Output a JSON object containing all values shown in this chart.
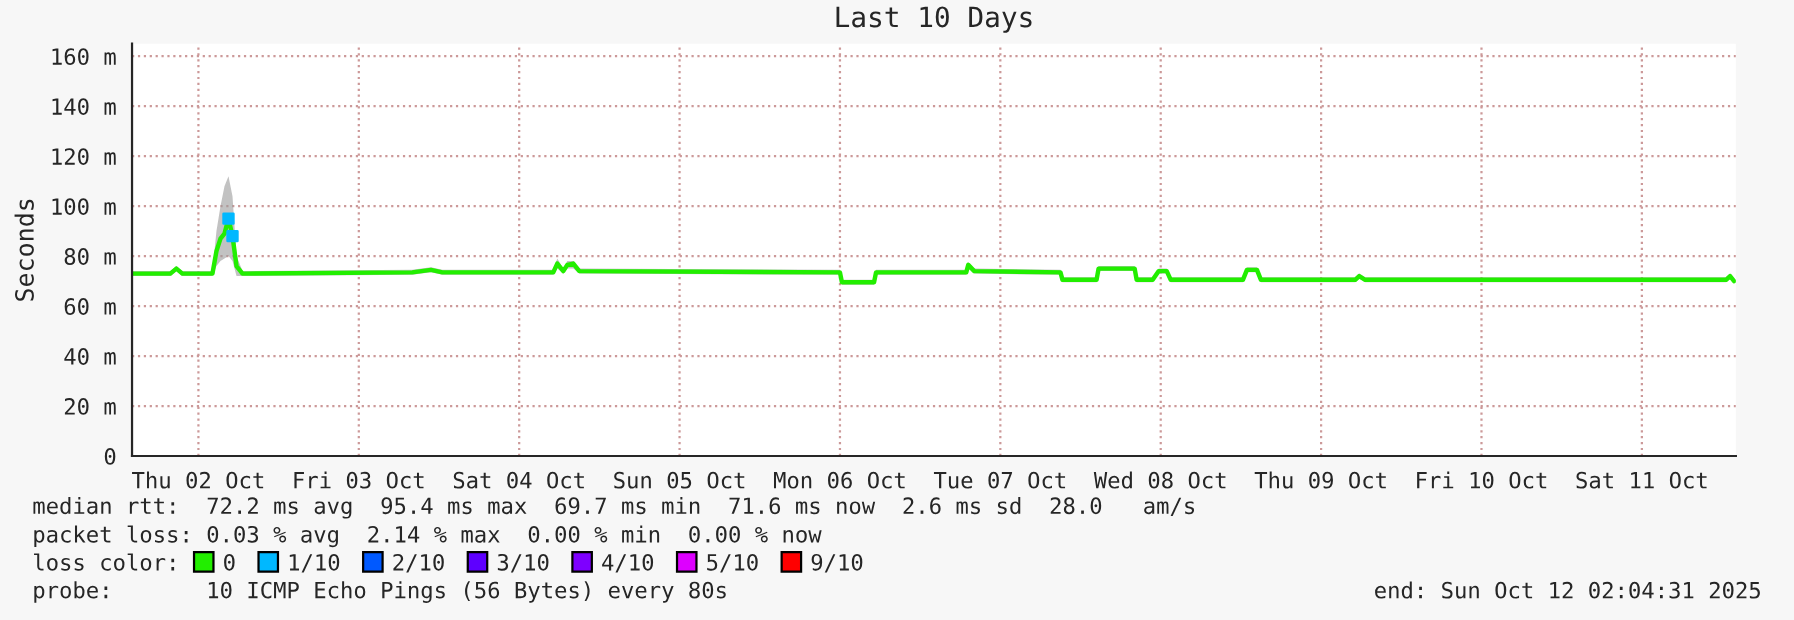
{
  "chart_data": {
    "type": "line",
    "title": "Last 10 Days",
    "ylabel": "Seconds",
    "xlim": [
      "2025-10-02T02:04",
      "2025-10-12T02:04"
    ],
    "xticks": [
      {
        "value": "2025-10-02T12:00",
        "label": "Thu 02 Oct"
      },
      {
        "value": "2025-10-03T12:00",
        "label": "Fri 03 Oct"
      },
      {
        "value": "2025-10-04T12:00",
        "label": "Sat 04 Oct"
      },
      {
        "value": "2025-10-05T12:00",
        "label": "Sun 05 Oct"
      },
      {
        "value": "2025-10-06T12:00",
        "label": "Mon 06 Oct"
      },
      {
        "value": "2025-10-07T12:00",
        "label": "Tue 07 Oct"
      },
      {
        "value": "2025-10-08T12:00",
        "label": "Wed 08 Oct"
      },
      {
        "value": "2025-10-09T12:00",
        "label": "Thu 09 Oct"
      },
      {
        "value": "2025-10-10T12:00",
        "label": "Fri 10 Oct"
      },
      {
        "value": "2025-10-11T12:00",
        "label": "Sat 11 Oct"
      }
    ],
    "ylim": [
      0,
      165
    ],
    "yticks": [
      0,
      {
        "value": 20,
        "label": "20 m"
      },
      {
        "value": 40,
        "label": "40 m"
      },
      {
        "value": 60,
        "label": "60 m"
      },
      {
        "value": 80,
        "label": "80 m"
      },
      {
        "value": 100,
        "label": "100 m"
      },
      {
        "value": 120,
        "label": "120 m"
      },
      {
        "value": 140,
        "label": "140 m"
      },
      {
        "value": 160,
        "label": "160 m"
      }
    ],
    "grid": true,
    "legend": "bottom",
    "legend_title": "loss color:",
    "series": [
      {
        "name": "0",
        "color": "#22ee00",
        "marker": "none",
        "x": [
          "2025-10-02T02:06",
          "2025-10-02T07:48",
          "2025-10-02T08:42",
          "2025-10-02T09:36",
          "2025-10-02T14:06",
          "2025-10-02T14:42",
          "2025-10-02T15:18",
          "2025-10-02T15:54",
          "2025-10-02T16:30",
          "2025-10-02T17:06",
          "2025-10-02T17:42",
          "2025-10-02T18:36",
          "2025-10-03T20:00",
          "2025-10-03T22:48",
          "2025-10-04T00:30",
          "2025-10-04T17:06",
          "2025-10-04T17:42",
          "2025-10-04T18:36",
          "2025-10-04T19:12",
          "2025-10-04T20:06",
          "2025-10-04T21:00",
          "2025-10-06T12:00",
          "2025-10-06T12:18",
          "2025-10-06T17:06",
          "2025-10-06T17:24",
          "2025-10-07T06:54",
          "2025-10-07T07:12",
          "2025-10-07T08:06",
          "2025-10-07T21:00",
          "2025-10-07T21:18",
          "2025-10-08T02:24",
          "2025-10-08T02:42",
          "2025-10-08T08:06",
          "2025-10-08T08:24",
          "2025-10-08T10:48",
          "2025-10-08T11:42",
          "2025-10-08T12:54",
          "2025-10-08T13:30",
          "2025-10-09T00:18",
          "2025-10-09T00:54",
          "2025-10-09T02:24",
          "2025-10-09T03:00",
          "2025-10-09T17:06",
          "2025-10-09T17:42",
          "2025-10-09T18:36",
          "2025-10-12T00:36",
          "2025-10-12T01:12",
          "2025-10-12T01:48"
        ],
        "values": [
          73,
          73,
          75,
          73,
          73,
          82,
          87,
          89,
          95,
          88,
          76,
          73,
          73.5,
          74.5,
          73.5,
          73.5,
          77,
          74,
          76.5,
          77,
          74,
          73.5,
          69.5,
          69.5,
          73.5,
          73.5,
          76.5,
          74,
          73.5,
          70.5,
          70.5,
          75,
          75,
          70.5,
          70.5,
          74,
          74,
          70.5,
          70.5,
          74.5,
          74.5,
          70.5,
          70.5,
          72,
          70.5,
          70.5,
          72,
          70
        ],
        "lower": [
          72,
          72,
          74,
          72,
          72,
          76,
          78,
          79,
          80,
          78,
          72,
          72,
          72.5,
          73.5,
          72.5,
          72.5,
          75,
          73,
          75,
          75,
          73,
          72.5,
          68.5,
          68.5,
          72.5,
          72.5,
          75,
          73,
          72.5,
          69.5,
          69.5,
          74,
          74,
          69.5,
          69.5,
          73,
          73,
          69.5,
          69.5,
          73.5,
          73.5,
          69.5,
          69.5,
          71,
          69.5,
          69.5,
          71,
          69
        ],
        "upper": [
          74,
          74,
          76,
          74,
          74,
          90,
          100,
          108,
          112,
          104,
          80,
          74,
          74.5,
          75.5,
          74.5,
          74.5,
          79,
          75,
          78,
          78,
          75,
          74.5,
          70.5,
          70.5,
          74.5,
          74.5,
          77.5,
          75,
          74.5,
          71.5,
          71.5,
          76,
          76,
          71.5,
          71.5,
          75,
          75,
          71.5,
          71.5,
          75.5,
          75.5,
          71.5,
          71.5,
          73,
          71.5,
          71.5,
          73,
          71
        ],
        "line_style": "solid"
      },
      {
        "name": "1/10",
        "color": "#00b8ff",
        "type": "scatter",
        "marker": "square",
        "x": [
          "2025-10-02T16:30",
          "2025-10-02T17:06"
        ],
        "values": [
          95,
          88
        ]
      },
      {
        "name": "2/10",
        "color": "#0059ff",
        "type": "scatter",
        "marker": "square"
      },
      {
        "name": "3/10",
        "color": "#5e00ff",
        "type": "scatter",
        "marker": "square"
      },
      {
        "name": "4/10",
        "color": "#7e00ff",
        "type": "scatter",
        "marker": "square"
      },
      {
        "name": "5/10",
        "color": "#dd00ff",
        "type": "scatter",
        "marker": "square"
      },
      {
        "name": "9/10",
        "color": "#ff0000",
        "type": "scatter",
        "marker": "square"
      }
    ],
    "annotations": [
      "median rtt:  72.2 ms avg  95.4 ms max  69.7 ms min  71.6 ms now  2.6 ms sd  28.0   am/s",
      "packet loss: 0.03 % avg  2.14 % max  0.00 % min  0.00 % now",
      "probe:       10 ICMP Echo Pings (56 Bytes) every 80s",
      "end: Sun Oct 12 02:04:31 2025"
    ]
  }
}
